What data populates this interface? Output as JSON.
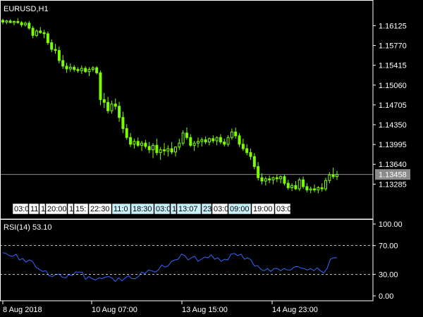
{
  "chart_data": [
    {
      "type": "candlestick",
      "symbol_label": "EURUSD,H1",
      "colors": {
        "candle": "#7CFC00",
        "grid": "#ffffff",
        "current_price_line": "#8a8a8a"
      },
      "y_ticks": [
        "1.16125",
        "1.15770",
        "1.15415",
        "1.15060",
        "1.14705",
        "1.14350",
        "1.13995",
        "1.13640",
        "1.13285"
      ],
      "ylim": [
        1.131,
        1.1632
      ],
      "current_price": "1.13458",
      "candles": [
        [
          1.1622,
          1.1625,
          1.1615,
          1.1619
        ],
        [
          1.1619,
          1.1623,
          1.1615,
          1.1621
        ],
        [
          1.1621,
          1.1624,
          1.1617,
          1.1618
        ],
        [
          1.1618,
          1.1622,
          1.1613,
          1.162
        ],
        [
          1.162,
          1.1626,
          1.1616,
          1.1618
        ],
        [
          1.1618,
          1.1621,
          1.161,
          1.1614
        ],
        [
          1.1614,
          1.162,
          1.1611,
          1.1617
        ],
        [
          1.1617,
          1.1621,
          1.1605,
          1.1608
        ],
        [
          1.1608,
          1.1612,
          1.159,
          1.1595
        ],
        [
          1.1595,
          1.1606,
          1.1592,
          1.1603
        ],
        [
          1.1603,
          1.161,
          1.1598,
          1.16
        ],
        [
          1.16,
          1.1605,
          1.159,
          1.1598
        ],
        [
          1.1598,
          1.1602,
          1.1578,
          1.1582
        ],
        [
          1.1582,
          1.1588,
          1.1565,
          1.157
        ],
        [
          1.157,
          1.158,
          1.1562,
          1.1568
        ],
        [
          1.1568,
          1.1575,
          1.1545,
          1.155
        ],
        [
          1.155,
          1.156,
          1.1535,
          1.154
        ],
        [
          1.154,
          1.1546,
          1.1528,
          1.1535
        ],
        [
          1.1535,
          1.1545,
          1.153,
          1.1538
        ],
        [
          1.1538,
          1.1542,
          1.153,
          1.1534
        ],
        [
          1.1534,
          1.1538,
          1.1528,
          1.1532
        ],
        [
          1.1532,
          1.1541,
          1.1526,
          1.1536
        ],
        [
          1.1536,
          1.154,
          1.1528,
          1.153
        ],
        [
          1.153,
          1.1538,
          1.1522,
          1.1534
        ],
        [
          1.1534,
          1.154,
          1.153,
          1.1537
        ],
        [
          1.1537,
          1.154,
          1.1525,
          1.1528
        ],
        [
          1.1528,
          1.1532,
          1.147,
          1.148
        ],
        [
          1.148,
          1.1492,
          1.1465,
          1.1475
        ],
        [
          1.1475,
          1.1485,
          1.1455,
          1.146
        ],
        [
          1.146,
          1.1478,
          1.1455,
          1.1472
        ],
        [
          1.1472,
          1.1482,
          1.1462,
          1.1468
        ],
        [
          1.1468,
          1.1476,
          1.144,
          1.1448
        ],
        [
          1.1448,
          1.1458,
          1.142,
          1.1428
        ],
        [
          1.1428,
          1.1436,
          1.1408,
          1.1412
        ],
        [
          1.1412,
          1.142,
          1.1395,
          1.14
        ],
        [
          1.14,
          1.141,
          1.1392,
          1.1405
        ],
        [
          1.1405,
          1.1412,
          1.1395,
          1.1398
        ],
        [
          1.1398,
          1.1406,
          1.1388,
          1.1402
        ],
        [
          1.1402,
          1.1408,
          1.1392,
          1.1396
        ],
        [
          1.1396,
          1.1404,
          1.1384,
          1.139
        ],
        [
          1.139,
          1.1402,
          1.1375,
          1.1398
        ],
        [
          1.1398,
          1.141,
          1.138,
          1.1385
        ],
        [
          1.1385,
          1.1395,
          1.1372,
          1.139
        ],
        [
          1.139,
          1.1402,
          1.138,
          1.1388
        ],
        [
          1.1388,
          1.1398,
          1.1378,
          1.1392
        ],
        [
          1.1392,
          1.1404,
          1.1382,
          1.1386
        ],
        [
          1.1386,
          1.1396,
          1.1378,
          1.1395
        ],
        [
          1.1395,
          1.141,
          1.139,
          1.1402
        ],
        [
          1.1402,
          1.1425,
          1.1398,
          1.142
        ],
        [
          1.142,
          1.143,
          1.1408,
          1.1412
        ],
        [
          1.1412,
          1.1418,
          1.1395,
          1.1398
        ],
        [
          1.1398,
          1.1406,
          1.1388,
          1.1402
        ],
        [
          1.1402,
          1.1412,
          1.1394,
          1.1405
        ],
        [
          1.1405,
          1.1412,
          1.1396,
          1.1408
        ],
        [
          1.1408,
          1.1414,
          1.14,
          1.1404
        ],
        [
          1.1404,
          1.1412,
          1.1398,
          1.141
        ],
        [
          1.141,
          1.1416,
          1.1402,
          1.1406
        ],
        [
          1.1406,
          1.1414,
          1.1398,
          1.1412
        ],
        [
          1.1412,
          1.1418,
          1.14,
          1.1404
        ],
        [
          1.1404,
          1.141,
          1.1396,
          1.14
        ],
        [
          1.14,
          1.1416,
          1.1396,
          1.1412
        ],
        [
          1.1412,
          1.1428,
          1.1408,
          1.1422
        ],
        [
          1.1422,
          1.143,
          1.141,
          1.1415
        ],
        [
          1.1415,
          1.142,
          1.1395,
          1.14
        ],
        [
          1.14,
          1.141,
          1.1388,
          1.1392
        ],
        [
          1.1392,
          1.14,
          1.138,
          1.1385
        ],
        [
          1.1385,
          1.1392,
          1.1372,
          1.1378
        ],
        [
          1.1378,
          1.1384,
          1.1355,
          1.136
        ],
        [
          1.136,
          1.1368,
          1.1335,
          1.134
        ],
        [
          1.134,
          1.1348,
          1.1328,
          1.1334
        ],
        [
          1.1334,
          1.1342,
          1.1326,
          1.1338
        ],
        [
          1.1338,
          1.1344,
          1.133,
          1.1336
        ],
        [
          1.1336,
          1.1342,
          1.1328,
          1.134
        ],
        [
          1.134,
          1.1346,
          1.1332,
          1.1338
        ],
        [
          1.1338,
          1.1344,
          1.133,
          1.1342
        ],
        [
          1.1342,
          1.1346,
          1.1326,
          1.133
        ],
        [
          1.133,
          1.1336,
          1.1318,
          1.1322
        ],
        [
          1.1322,
          1.133,
          1.1316,
          1.1326
        ],
        [
          1.1326,
          1.1334,
          1.1318,
          1.132
        ],
        [
          1.132,
          1.134,
          1.1316,
          1.1336
        ],
        [
          1.1336,
          1.1342,
          1.132,
          1.1324
        ],
        [
          1.1324,
          1.133,
          1.1314,
          1.1318
        ],
        [
          1.1318,
          1.1324,
          1.1312,
          1.132
        ],
        [
          1.132,
          1.1328,
          1.1314,
          1.1318
        ],
        [
          1.1318,
          1.1325,
          1.1312,
          1.1322
        ],
        [
          1.1322,
          1.133,
          1.1315,
          1.132
        ],
        [
          1.132,
          1.134,
          1.1316,
          1.1335
        ],
        [
          1.1335,
          1.135,
          1.133,
          1.1345
        ],
        [
          1.1345,
          1.1358,
          1.1338,
          1.1342
        ],
        [
          1.1342,
          1.1352,
          1.1336,
          1.1346
        ]
      ],
      "session_labels": [
        {
          "text": "03:0",
          "highlight": false
        },
        {
          "text": "11",
          "highlight": false
        },
        {
          "text": "1",
          "highlight": false
        },
        {
          "text": "20:00",
          "highlight": false
        },
        {
          "text": "1",
          "highlight": false
        },
        {
          "text": "15:",
          "highlight": false
        },
        {
          "text": "22:30",
          "highlight": false
        },
        {
          "text": "11:0",
          "highlight": true
        },
        {
          "text": "18:30",
          "highlight": true
        },
        {
          "text": "03:0",
          "highlight": true
        },
        {
          "text": "1",
          "highlight": true
        },
        {
          "text": "13:07",
          "highlight": true
        },
        {
          "text": "23",
          "highlight": true
        },
        {
          "text": "03:0",
          "highlight": false
        },
        {
          "text": "09:00",
          "highlight": true
        },
        {
          "text": "19:00",
          "highlight": false
        },
        {
          "text": "03:0",
          "highlight": false
        }
      ]
    },
    {
      "type": "line",
      "title": "RSI(14) 53.10",
      "colors": {
        "line": "#3366ff",
        "level_line": "#ffffff"
      },
      "y_ticks": [
        "100.00",
        "70.00",
        "30.00",
        "0.00"
      ],
      "levels": [
        70,
        30
      ],
      "ylim": [
        0,
        100
      ],
      "series": [
        {
          "values": [
            60,
            59,
            56,
            55,
            58,
            50,
            52,
            47,
            50,
            48,
            40,
            37,
            34,
            35,
            28,
            27,
            30,
            30,
            26,
            25,
            30,
            28,
            33,
            33,
            33,
            23,
            27,
            24,
            22,
            25,
            24,
            26,
            27,
            25,
            20,
            25,
            21,
            25,
            28,
            24,
            24,
            27,
            33,
            31,
            36,
            35,
            33,
            36,
            43,
            40,
            42,
            48,
            50,
            51,
            58,
            56,
            50,
            53,
            55,
            48,
            51,
            54,
            53,
            57,
            51,
            53,
            48,
            51,
            50,
            58,
            59,
            56,
            58,
            51,
            53,
            50,
            42,
            42,
            37,
            35,
            38,
            34,
            38,
            38,
            35,
            38,
            36,
            36,
            40,
            41,
            39,
            38,
            36,
            38,
            35,
            39,
            35,
            32,
            38,
            51,
            53,
            53
          ]
        }
      ]
    }
  ],
  "x_axis": {
    "labels": [
      "8 Aug 2018",
      "10 Aug 07:00",
      "13 Aug 15:00",
      "14 Aug 23:00"
    ]
  }
}
